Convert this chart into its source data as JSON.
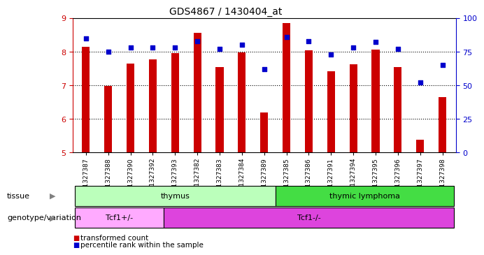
{
  "title": "GDS4867 / 1430404_at",
  "samples": [
    "GSM1327387",
    "GSM1327388",
    "GSM1327390",
    "GSM1327392",
    "GSM1327393",
    "GSM1327382",
    "GSM1327383",
    "GSM1327384",
    "GSM1327389",
    "GSM1327385",
    "GSM1327386",
    "GSM1327391",
    "GSM1327394",
    "GSM1327395",
    "GSM1327396",
    "GSM1327397",
    "GSM1327398"
  ],
  "transformed_counts": [
    8.15,
    6.98,
    7.65,
    7.78,
    7.95,
    8.55,
    7.55,
    7.98,
    6.2,
    8.85,
    8.05,
    7.42,
    7.62,
    8.07,
    7.55,
    5.38,
    6.65
  ],
  "percentile_ranks": [
    85,
    75,
    78,
    78,
    78,
    83,
    77,
    80,
    62,
    86,
    83,
    73,
    78,
    82,
    77,
    52,
    65
  ],
  "ylim_left": [
    5,
    9
  ],
  "ylim_right": [
    0,
    100
  ],
  "yticks_left": [
    5,
    6,
    7,
    8,
    9
  ],
  "yticks_right": [
    0,
    25,
    50,
    75,
    100
  ],
  "bar_color": "#cc0000",
  "dot_color": "#0000cc",
  "grid_color": "#000000",
  "tissue_groups": [
    {
      "label": "thymus",
      "start": 0,
      "end": 9,
      "color": "#bbffbb"
    },
    {
      "label": "thymic lymphoma",
      "start": 9,
      "end": 17,
      "color": "#44dd44"
    }
  ],
  "genotype_groups": [
    {
      "label": "Tcf1+/-",
      "start": 0,
      "end": 4,
      "color": "#ffaaff"
    },
    {
      "label": "Tcf1-/-",
      "start": 4,
      "end": 17,
      "color": "#dd44dd"
    }
  ],
  "legend_items": [
    {
      "label": "transformed count",
      "color": "#cc0000"
    },
    {
      "label": "percentile rank within the sample",
      "color": "#0000cc"
    }
  ],
  "left_axis_color": "#cc0000",
  "right_axis_color": "#0000cc",
  "background_color": "#ffffff",
  "row_label_tissue": "tissue",
  "row_label_genotype": "genotype/variation"
}
